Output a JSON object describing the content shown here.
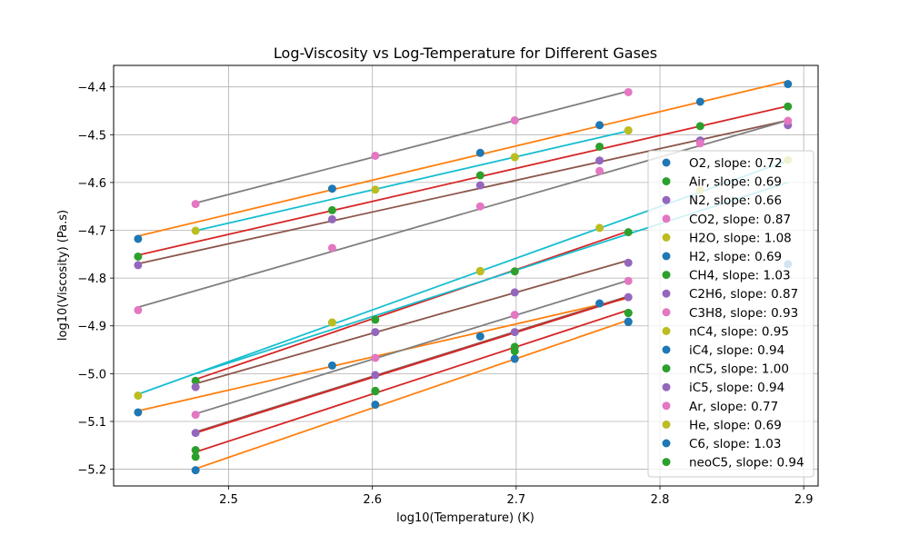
{
  "chart_data": {
    "type": "scatter",
    "title": "Log-Viscosity vs Log-Temperature for Different Gases",
    "xlabel": "log10(Temperature) (K)",
    "ylabel": "log10(Viscosity) (Pa.s)",
    "xlim": [
      2.42,
      2.91
    ],
    "ylim": [
      -5.235,
      -4.355
    ],
    "xticks": [
      2.5,
      2.6,
      2.7,
      2.8,
      2.9
    ],
    "xtick_labels": [
      "2.5",
      "2.6",
      "2.7",
      "2.8",
      "2.9"
    ],
    "yticks": [
      -5.2,
      -5.1,
      -5.0,
      -4.9,
      -4.8,
      -4.7,
      -4.6,
      -4.5,
      -4.4
    ],
    "ytick_labels": [
      "−5.2",
      "−5.1",
      "−5.0",
      "−4.9",
      "−4.8",
      "−4.7",
      "−4.6",
      "−4.5",
      "−4.4"
    ],
    "grid": true,
    "legend_position": "right",
    "series": [
      {
        "name": "O2, slope: 0.72",
        "color": "#1f77b4",
        "x": [
          2.437,
          2.572,
          2.675,
          2.758,
          2.828,
          2.889
        ],
        "y": [
          -4.718,
          -4.613,
          -4.538,
          -4.48,
          -4.431,
          -4.394
        ]
      },
      {
        "name": "Air, slope: 0.69",
        "color": "#2ca02c",
        "x": [
          2.437,
          2.572,
          2.675,
          2.758,
          2.828,
          2.889
        ],
        "y": [
          -4.755,
          -4.658,
          -4.585,
          -4.525,
          -4.482,
          -4.441
        ]
      },
      {
        "name": "N2, slope: 0.66",
        "color": "#9467bd",
        "x": [
          2.437,
          2.572,
          2.675,
          2.758,
          2.828,
          2.889
        ],
        "y": [
          -4.773,
          -4.677,
          -4.606,
          -4.554,
          -4.512,
          -4.48
        ]
      },
      {
        "name": "CO2, slope: 0.87",
        "color": "#e377c2",
        "x": [
          2.437,
          2.572,
          2.675,
          2.758,
          2.828,
          2.889
        ],
        "y": [
          -4.867,
          -4.737,
          -4.65,
          -4.576,
          -4.518,
          -4.471
        ]
      },
      {
        "name": "H2O, slope: 1.08",
        "color": "#bcbd22",
        "x": [
          2.437,
          2.572,
          2.675,
          2.758,
          2.828,
          2.889
        ],
        "y": [
          -5.046,
          -4.893,
          -4.786,
          -4.695,
          -4.616,
          -4.553
        ]
      },
      {
        "name": "H2, slope: 0.69",
        "color": "#1f77b4",
        "x": [
          2.437,
          2.572,
          2.675,
          2.778
        ],
        "y": [
          -5.081,
          -4.983,
          -4.922,
          -4.892
        ]
      },
      {
        "name": "CH4, slope: 1.03",
        "color": "#2ca02c",
        "x": [
          2.477,
          2.602,
          2.699,
          2.778
        ],
        "y": [
          -5.015,
          -4.887,
          -4.786,
          -4.704
        ]
      },
      {
        "name": "C2H6, slope: 0.87",
        "color": "#9467bd",
        "x": [
          2.477,
          2.602,
          2.699,
          2.778
        ],
        "y": [
          -5.028,
          -4.913,
          -4.83,
          -4.768
        ]
      },
      {
        "name": "C3H8, slope: 0.93",
        "color": "#e377c2",
        "x": [
          2.477,
          2.602,
          2.699,
          2.778
        ],
        "y": [
          -5.086,
          -4.967,
          -4.877,
          -4.806
        ]
      },
      {
        "name": "nC4, slope: 0.95",
        "color": "#bcbd22",
        "x": [
          2.572,
          2.675,
          2.699,
          2.778
        ],
        "y": [
          -4.893,
          -4.785,
          -4.547,
          -4.491
        ]
      },
      {
        "name": "iC4, slope: 0.94",
        "color": "#1f77b4",
        "x": [
          2.477,
          2.602,
          2.699,
          2.778
        ],
        "y": [
          -5.202,
          -5.065,
          -4.969,
          -4.891
        ]
      },
      {
        "name": "nC5, slope: 1.00",
        "color": "#2ca02c",
        "x": [
          2.477,
          2.602,
          2.699,
          2.778
        ],
        "y": [
          -5.16,
          -5.037,
          -4.944,
          -4.873
        ]
      },
      {
        "name": "iC5, slope: 0.94",
        "color": "#9467bd",
        "x": [
          2.477,
          2.602,
          2.699,
          2.778
        ],
        "y": [
          -5.124,
          -5.003,
          -4.913,
          -4.84
        ]
      },
      {
        "name": "Ar, slope: 0.77",
        "color": "#e377c2",
        "x": [
          2.477,
          2.602,
          2.699,
          2.778
        ],
        "y": [
          -4.645,
          -4.544,
          -4.47,
          -4.411
        ]
      },
      {
        "name": "He, slope: 0.69",
        "color": "#bcbd22",
        "x": [
          2.477,
          2.602,
          2.699,
          2.778
        ],
        "y": [
          -4.701,
          -4.615,
          -4.547,
          -4.491
        ]
      },
      {
        "name": "C6, slope: 1.03",
        "color": "#1f77b4",
        "x": [
          2.758,
          2.889
        ],
        "y": [
          -4.853,
          -4.771
        ]
      },
      {
        "name": "neoC5, slope: 0.94",
        "color": "#2ca02c",
        "x": [
          2.477,
          2.602,
          2.699,
          2.778
        ],
        "y": [
          -5.174,
          -5.036,
          -4.953,
          -4.873
        ]
      }
    ],
    "fit_lines": [
      {
        "color": "#ff7f0e",
        "x": [
          2.437,
          2.889
        ],
        "y": [
          -4.712,
          -4.388
        ]
      },
      {
        "color": "#d62728",
        "x": [
          2.437,
          2.889
        ],
        "y": [
          -4.752,
          -4.44
        ]
      },
      {
        "color": "#8c564b",
        "x": [
          2.437,
          2.889
        ],
        "y": [
          -4.77,
          -4.47
        ]
      },
      {
        "color": "#7f7f7f",
        "x": [
          2.437,
          2.889
        ],
        "y": [
          -4.861,
          -4.47
        ]
      },
      {
        "color": "#17becf",
        "x": [
          2.437,
          2.889
        ],
        "y": [
          -5.043,
          -4.554
        ]
      },
      {
        "color": "#ff7f0e",
        "x": [
          2.437,
          2.778
        ],
        "y": [
          -5.078,
          -4.842
        ]
      },
      {
        "color": "#d62728",
        "x": [
          2.477,
          2.778
        ],
        "y": [
          -5.012,
          -4.702
        ]
      },
      {
        "color": "#8c564b",
        "x": [
          2.477,
          2.778
        ],
        "y": [
          -5.021,
          -4.763
        ]
      },
      {
        "color": "#7f7f7f",
        "x": [
          2.477,
          2.778
        ],
        "y": [
          -5.084,
          -4.805
        ]
      },
      {
        "color": "#ff7f0e",
        "x": [
          2.477,
          2.778
        ],
        "y": [
          -5.199,
          -4.888
        ]
      },
      {
        "color": "#d62728",
        "x": [
          2.477,
          2.778
        ],
        "y": [
          -5.164,
          -4.867
        ]
      },
      {
        "color": "#8c564b",
        "x": [
          2.477,
          2.778
        ],
        "y": [
          -5.122,
          -4.838
        ]
      },
      {
        "color": "#7f7f7f",
        "x": [
          2.477,
          2.778
        ],
        "y": [
          -4.643,
          -4.409
        ]
      },
      {
        "color": "#17becf",
        "x": [
          2.477,
          2.778
        ],
        "y": [
          -4.701,
          -4.492
        ]
      },
      {
        "color": "#d62728",
        "x": [
          2.477,
          2.778
        ],
        "y": [
          -5.124,
          -4.84
        ]
      },
      {
        "color": "#17becf",
        "x": [
          2.477,
          2.889
        ],
        "y": [
          -5.0,
          -4.6
        ]
      }
    ]
  }
}
